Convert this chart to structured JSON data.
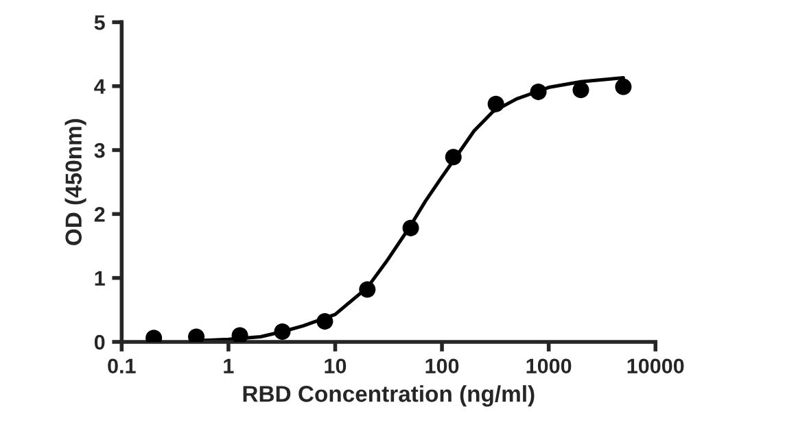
{
  "chart_data": {
    "type": "scatter",
    "xlabel": "RBD Concentration (ng/ml)",
    "ylabel": "OD (450nm)",
    "log": "x",
    "xlim": [
      0.1,
      10000
    ],
    "xticks": [
      0.1,
      1,
      10,
      100,
      1000,
      10000
    ],
    "ylim": [
      0,
      5
    ],
    "yticks": [
      0,
      1,
      2,
      3,
      4,
      5
    ],
    "grid": false,
    "series": [
      {
        "color": "#000000",
        "marker": "circle",
        "x": [
          0.2,
          0.5,
          1.28,
          3.2,
          8,
          20,
          51,
          128,
          320,
          800,
          2000,
          5000
        ],
        "values": [
          0.06,
          0.08,
          0.1,
          0.16,
          0.32,
          0.82,
          1.78,
          2.89,
          3.72,
          3.91,
          3.94,
          3.99
        ]
      },
      {
        "type": "line",
        "color": "#000000",
        "line_style": "solid",
        "x": [
          0.55,
          1,
          2,
          3.2,
          5,
          10,
          20,
          30,
          50,
          70,
          100,
          150,
          200,
          300,
          500,
          1000,
          2000,
          5000
        ],
        "values": [
          0.02,
          0.04,
          0.08,
          0.16,
          0.25,
          0.43,
          0.85,
          1.25,
          1.8,
          2.2,
          2.58,
          3.0,
          3.3,
          3.6,
          3.8,
          3.98,
          4.07,
          4.13
        ]
      }
    ]
  }
}
